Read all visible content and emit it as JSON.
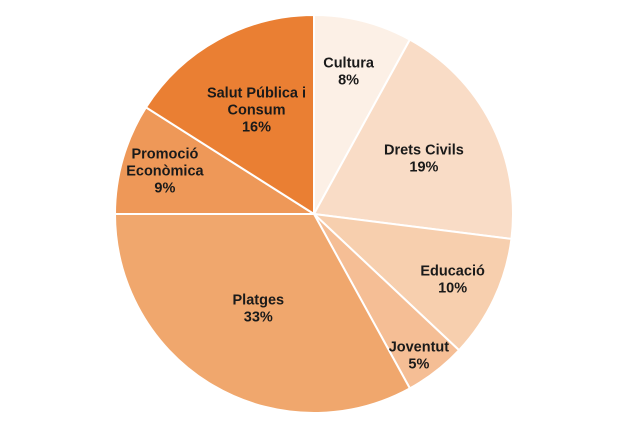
{
  "chart_data": {
    "type": "pie",
    "title": "",
    "slices": [
      {
        "label": [
          "Cultura"
        ],
        "value": 8,
        "pct_label": "8%",
        "color": "#FCF0E6"
      },
      {
        "label": [
          "Drets Civils"
        ],
        "value": 19,
        "pct_label": "19%",
        "color": "#F9DCC6"
      },
      {
        "label": [
          "Educació"
        ],
        "value": 10,
        "pct_label": "10%",
        "color": "#F7CFAE"
      },
      {
        "label": [
          "Joventut"
        ],
        "value": 5,
        "pct_label": "5%",
        "color": "#F5BE95"
      },
      {
        "label": [
          "Platges"
        ],
        "value": 33,
        "pct_label": "33%",
        "color": "#F0A76D"
      },
      {
        "label": [
          "Promoció",
          "Econòmica"
        ],
        "value": 9,
        "pct_label": "9%",
        "color": "#EE9858"
      },
      {
        "label": [
          "Salut Pública i",
          "Consum"
        ],
        "value": 16,
        "pct_label": "16%",
        "color": "#EA7F33"
      }
    ],
    "start_angle_deg": 0,
    "direction": "clockwise",
    "legend": "none"
  }
}
